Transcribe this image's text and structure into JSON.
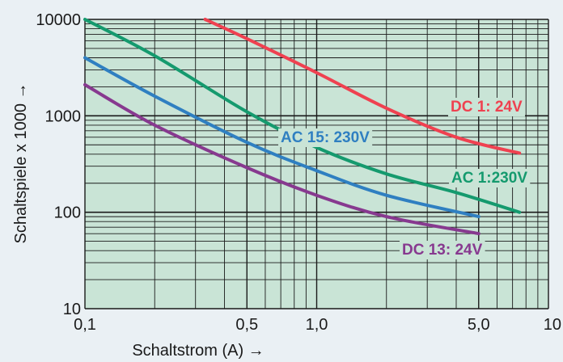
{
  "chart_data": {
    "type": "line",
    "xlabel": "Schaltstrom (A) →",
    "ylabel": "Schaltspiele x 1000 →",
    "x_scale": "log",
    "y_scale": "log",
    "xlim": [
      0.1,
      10
    ],
    "ylim": [
      10,
      10000
    ],
    "grid": true,
    "x_tick_values": [
      0.1,
      0.5,
      1.0,
      5.0,
      10
    ],
    "x_tick_labels": [
      "0,1",
      "0,5",
      "1,0",
      "5,0",
      "10"
    ],
    "y_tick_values": [
      10,
      100,
      1000,
      10000
    ],
    "y_tick_labels": [
      "10",
      "100",
      "1000",
      "10000"
    ],
    "colors": {
      "plot_background": "#c9e4d6",
      "grid": "#1a1a1a"
    },
    "series": [
      {
        "name": "DC 1: 24V",
        "color": "#ef4150",
        "x": [
          0.33,
          0.5,
          1.0,
          2.0,
          4.0,
          7.5
        ],
        "y": [
          10000,
          6300,
          2800,
          1200,
          600,
          410
        ]
      },
      {
        "name": "AC 1:230V",
        "color": "#159a6e",
        "x": [
          0.1,
          0.2,
          0.5,
          1.0,
          2.0,
          4.0,
          7.5
        ],
        "y": [
          10000,
          4200,
          1100,
          470,
          250,
          160,
          100
        ]
      },
      {
        "name": "AC 15: 230V",
        "color": "#2f7fc1",
        "x": [
          0.1,
          0.2,
          0.5,
          1.0,
          2.0,
          5.0
        ],
        "y": [
          4000,
          1600,
          530,
          270,
          150,
          90
        ]
      },
      {
        "name": "DC 13: 24V",
        "color": "#87398f",
        "x": [
          0.1,
          0.2,
          0.5,
          1.0,
          2.0,
          5.0
        ],
        "y": [
          2100,
          800,
          290,
          150,
          90,
          60
        ]
      }
    ]
  }
}
